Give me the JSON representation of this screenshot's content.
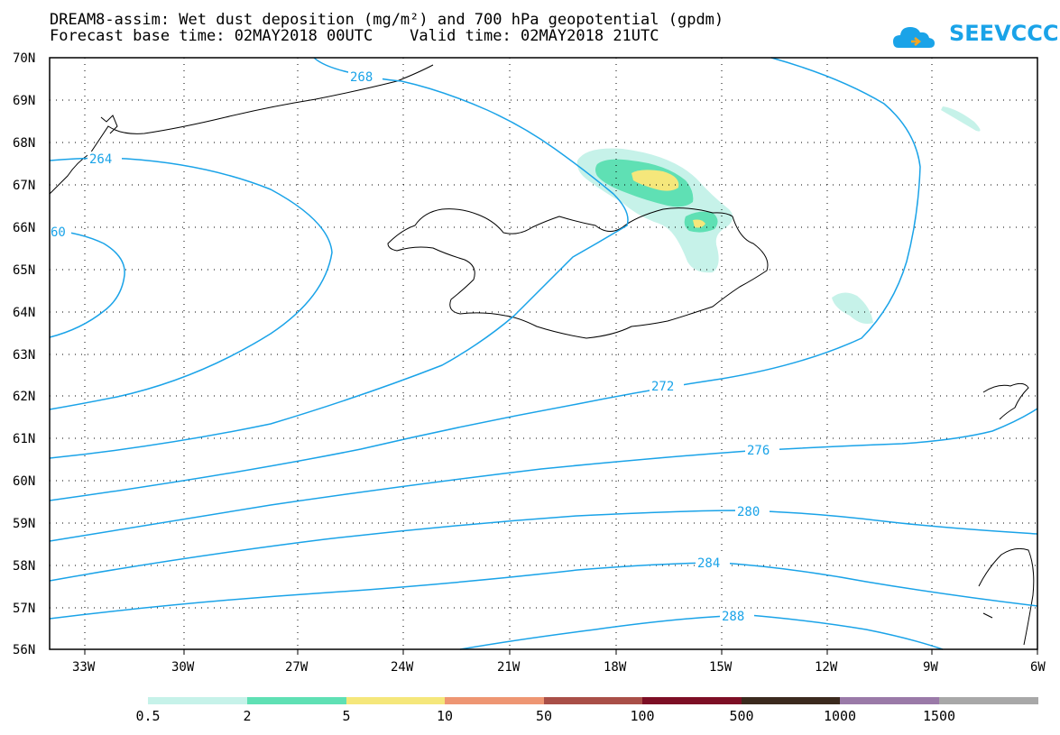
{
  "title_line1": "DREAM8-assim: Wet dust deposition (mg/m²) and 700 hPa geopotential (gpdm)",
  "title_line2": "Forecast base time: 02MAY2018 00UTC    Valid time: 02MAY2018 21UTC",
  "logo_text": "SEEVCCC",
  "lat_labels": [
    "70N",
    "69N",
    "68N",
    "67N",
    "66N",
    "65N",
    "64N",
    "63N",
    "62N",
    "61N",
    "60N",
    "59N",
    "58N",
    "57N",
    "56N"
  ],
  "lon_labels": [
    "33W",
    "30W",
    "27W",
    "24W",
    "21W",
    "18W",
    "15W",
    "12W",
    "9W",
    "6W"
  ],
  "contour_labels": [
    "268",
    "264",
    "60",
    "272",
    "276",
    "280",
    "284",
    "288"
  ],
  "legend": {
    "colors": [
      "#c6f2e9",
      "#5fe0b4",
      "#f5e77b",
      "#ee9673",
      "#a94f48",
      "#7d0f25",
      "#3b2a1e",
      "#9a7aa8",
      "#a8a8a8"
    ],
    "labels": [
      "0.5",
      "2",
      "5",
      "10",
      "50",
      "100",
      "500",
      "1000",
      "1500"
    ]
  },
  "colors": {
    "contour": "#1aa3e8",
    "coast": "#000000"
  }
}
